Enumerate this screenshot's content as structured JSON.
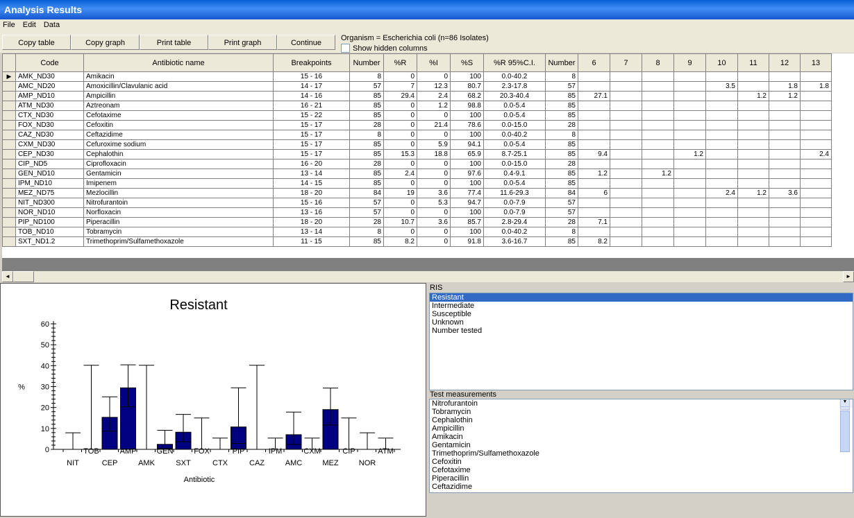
{
  "window": {
    "title": "Analysis Results"
  },
  "menu": [
    "File",
    "Edit",
    "Data"
  ],
  "toolbar": {
    "copy_table": "Copy table",
    "copy_graph": "Copy graph",
    "print_table": "Print table",
    "print_graph": "Print graph",
    "continue": "Continue"
  },
  "organism": "Organism = Escherichia coli  (n=86 Isolates)",
  "show_hidden": "Show hidden columns",
  "table": {
    "headers": [
      "Code",
      "Antibiotic name",
      "Breakpoints",
      "Number",
      "%R",
      "%I",
      "%S",
      "%R 95%C.I.",
      "Number",
      "6",
      "7",
      "8",
      "9",
      "10",
      "11",
      "12",
      "13"
    ],
    "rows": [
      [
        "AMK_ND30",
        "Amikacin",
        "15 - 16",
        "8",
        "0",
        "0",
        "100",
        "0.0-40.2",
        "8",
        "",
        "",
        "",
        "",
        "",
        "",
        "",
        ""
      ],
      [
        "AMC_ND20",
        "Amoxicillin/Clavulanic acid",
        "14 - 17",
        "57",
        "7",
        "12.3",
        "80.7",
        "2.3-17.8",
        "57",
        "",
        "",
        "",
        "",
        "3.5",
        "",
        "1.8",
        "1.8"
      ],
      [
        "AMP_ND10",
        "Ampicillin",
        "14 - 16",
        "85",
        "29.4",
        "2.4",
        "68.2",
        "20.3-40.4",
        "85",
        "27.1",
        "",
        "",
        "",
        "",
        "1.2",
        "1.2",
        ""
      ],
      [
        "ATM_ND30",
        "Aztreonam",
        "16 - 21",
        "85",
        "0",
        "1.2",
        "98.8",
        "0.0-5.4",
        "85",
        "",
        "",
        "",
        "",
        "",
        "",
        "",
        ""
      ],
      [
        "CTX_ND30",
        "Cefotaxime",
        "15 - 22",
        "85",
        "0",
        "0",
        "100",
        "0.0-5.4",
        "85",
        "",
        "",
        "",
        "",
        "",
        "",
        "",
        ""
      ],
      [
        "FOX_ND30",
        "Cefoxitin",
        "15 - 17",
        "28",
        "0",
        "21.4",
        "78.6",
        "0.0-15.0",
        "28",
        "",
        "",
        "",
        "",
        "",
        "",
        "",
        ""
      ],
      [
        "CAZ_ND30",
        "Ceftazidime",
        "15 - 17",
        "8",
        "0",
        "0",
        "100",
        "0.0-40.2",
        "8",
        "",
        "",
        "",
        "",
        "",
        "",
        "",
        ""
      ],
      [
        "CXM_ND30",
        "Cefuroxime sodium",
        "15 - 17",
        "85",
        "0",
        "5.9",
        "94.1",
        "0.0-5.4",
        "85",
        "",
        "",
        "",
        "",
        "",
        "",
        "",
        ""
      ],
      [
        "CEP_ND30",
        "Cephalothin",
        "15 - 17",
        "85",
        "15.3",
        "18.8",
        "65.9",
        "8.7-25.1",
        "85",
        "9.4",
        "",
        "",
        "1.2",
        "",
        "",
        "",
        "2.4"
      ],
      [
        "CIP_ND5",
        "Ciprofloxacin",
        "16 - 20",
        "28",
        "0",
        "0",
        "100",
        "0.0-15.0",
        "28",
        "",
        "",
        "",
        "",
        "",
        "",
        "",
        ""
      ],
      [
        "GEN_ND10",
        "Gentamicin",
        "13 - 14",
        "85",
        "2.4",
        "0",
        "97.6",
        "0.4-9.1",
        "85",
        "1.2",
        "",
        "1.2",
        "",
        "",
        "",
        "",
        ""
      ],
      [
        "IPM_ND10",
        "Imipenem",
        "14 - 15",
        "85",
        "0",
        "0",
        "100",
        "0.0-5.4",
        "85",
        "",
        "",
        "",
        "",
        "",
        "",
        "",
        ""
      ],
      [
        "MEZ_ND75",
        "Mezlocillin",
        "18 - 20",
        "84",
        "19",
        "3.6",
        "77.4",
        "11.6-29.3",
        "84",
        "6",
        "",
        "",
        "",
        "2.4",
        "1.2",
        "3.6",
        ""
      ],
      [
        "NIT_ND300",
        "Nitrofurantoin",
        "15 - 16",
        "57",
        "0",
        "5.3",
        "94.7",
        "0.0-7.9",
        "57",
        "",
        "",
        "",
        "",
        "",
        "",
        "",
        ""
      ],
      [
        "NOR_ND10",
        "Norfloxacin",
        "13 - 16",
        "57",
        "0",
        "0",
        "100",
        "0.0-7.9",
        "57",
        "",
        "",
        "",
        "",
        "",
        "",
        "",
        ""
      ],
      [
        "PIP_ND100",
        "Piperacillin",
        "18 - 20",
        "28",
        "10.7",
        "3.6",
        "85.7",
        "2.8-29.4",
        "28",
        "7.1",
        "",
        "",
        "",
        "",
        "",
        "",
        ""
      ],
      [
        "TOB_ND10",
        "Tobramycin",
        "13 - 14",
        "8",
        "0",
        "0",
        "100",
        "0.0-40.2",
        "8",
        "",
        "",
        "",
        "",
        "",
        "",
        "",
        ""
      ],
      [
        "SXT_ND1.2",
        "Trimethoprim/Sulfamethoxazole",
        "11 - 15",
        "85",
        "8.2",
        "0",
        "91.8",
        "3.6-16.7",
        "85",
        "8.2",
        "",
        "",
        "",
        "",
        "",
        "",
        ""
      ]
    ]
  },
  "ris": {
    "label": "RIS",
    "items": [
      "Resistant",
      "Intermediate",
      "Susceptible",
      "Unknown",
      "Number tested"
    ]
  },
  "tests": {
    "label": "Test measurements",
    "items": [
      "Nitrofurantoin",
      "Tobramycin",
      "Cephalothin",
      "Ampicillin",
      "Amikacin",
      "Gentamicin",
      "Trimethoprim/Sulfamethoxazole",
      "Cefoxitin",
      "Cefotaxime",
      "Piperacillin",
      "Ceftazidime"
    ]
  },
  "chart_data": {
    "type": "bar",
    "title": "Resistant",
    "xlabel": "Antibiotic",
    "ylabel": "%",
    "ylim": [
      0,
      60
    ],
    "yticks": [
      0,
      10,
      20,
      30,
      40,
      50,
      60
    ],
    "grid": false,
    "bar_color": "#000080",
    "categories": [
      "NIT",
      "TOB",
      "CEP",
      "AMP",
      "AMK",
      "GEN",
      "SXT",
      "FOX",
      "CTX",
      "PIP",
      "CAZ",
      "IPM",
      "AMC",
      "CXM",
      "MEZ",
      "CIP",
      "NOR",
      "ATM"
    ],
    "values": [
      0,
      0,
      15.3,
      29.4,
      0,
      2.4,
      8.2,
      0,
      0,
      10.7,
      0,
      0,
      7,
      0,
      19,
      0,
      0,
      0
    ],
    "ci_low": [
      0,
      0,
      8.7,
      20.3,
      0,
      0.4,
      3.6,
      0,
      0,
      2.8,
      0,
      0,
      2.3,
      0,
      11.6,
      0,
      0,
      0
    ],
    "ci_high": [
      7.9,
      40.2,
      25.1,
      40.4,
      40.2,
      9.1,
      16.7,
      15.0,
      5.4,
      29.4,
      40.2,
      5.4,
      17.8,
      5.4,
      29.3,
      15.0,
      7.9,
      5.4
    ]
  }
}
